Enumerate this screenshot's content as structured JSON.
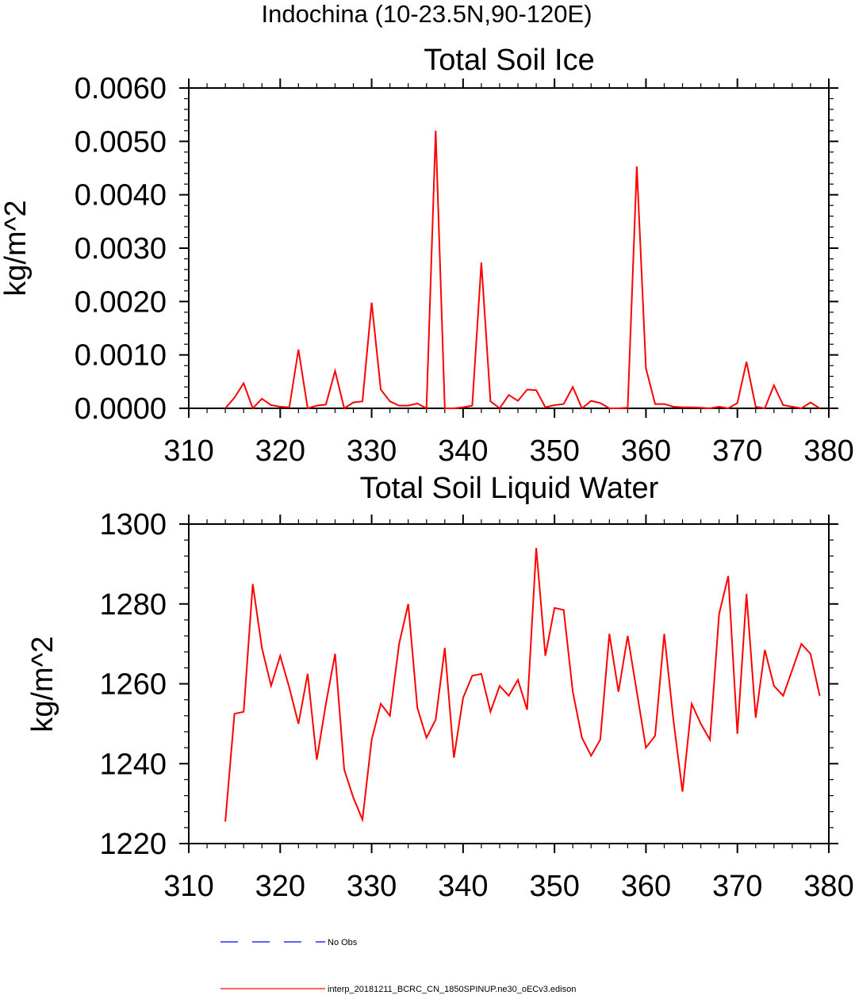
{
  "figure_title": "Indochina (10-23.5N,90-120E)",
  "chart_data": [
    {
      "type": "line",
      "title": "Total Soil Ice",
      "ylabel": "kg/m^2",
      "xlabel": "",
      "xlim": [
        310,
        380
      ],
      "ylim": [
        0,
        0.006
      ],
      "xticks": [
        "310",
        "320",
        "330",
        "340",
        "350",
        "360",
        "370",
        "380"
      ],
      "yticks": [
        "0.0000",
        "0.0010",
        "0.0020",
        "0.0030",
        "0.0040",
        "0.0050",
        "0.0060"
      ],
      "series": [
        {
          "color": "#ff0000",
          "x": [
            314,
            315,
            316,
            317,
            318,
            319,
            320,
            321,
            322,
            323,
            324,
            325,
            326,
            327,
            328,
            329,
            330,
            331,
            332,
            333,
            334,
            335,
            336,
            337,
            338,
            339,
            340,
            341,
            342,
            343,
            344,
            345,
            346,
            347,
            348,
            349,
            350,
            351,
            352,
            353,
            354,
            355,
            356,
            357,
            358,
            359,
            360,
            361,
            362,
            363,
            364,
            365,
            366,
            367,
            368,
            369,
            370,
            371,
            372,
            373,
            374,
            375,
            376,
            377,
            378,
            379
          ],
          "y": [
            0.0,
            0.0002,
            0.00047,
            0.0,
            0.00018,
            6e-05,
            3e-05,
            2e-05,
            0.0011,
            0.0,
            5e-05,
            7e-05,
            0.0007,
            0.0,
            0.00011,
            0.00013,
            0.00198,
            0.00035,
            0.00013,
            5e-05,
            5e-05,
            9e-05,
            0.0,
            0.0052,
            0.0,
            0.0,
            2e-05,
            5e-05,
            0.00273,
            0.00013,
            0.0,
            0.00025,
            0.00014,
            0.00035,
            0.00034,
            2e-05,
            6e-05,
            8e-05,
            0.0004,
            0.0,
            0.00014,
            0.0001,
            0.0,
            0.0,
            1e-05,
            0.00453,
            0.00075,
            8e-05,
            8e-05,
            3e-05,
            2e-05,
            2e-05,
            1e-05,
            0.0,
            3e-05,
            0.0,
            0.0001,
            0.00087,
            3e-05,
            0.0,
            0.00043,
            6e-05,
            3e-05,
            0.0,
            0.00011,
            0.0
          ]
        }
      ]
    },
    {
      "type": "line",
      "title": "Total Soil Liquid Water",
      "ylabel": "kg/m^2",
      "xlabel": "",
      "xlim": [
        310,
        380
      ],
      "ylim": [
        1220,
        1300
      ],
      "xticks": [
        "310",
        "320",
        "330",
        "340",
        "350",
        "360",
        "370",
        "380"
      ],
      "yticks": [
        "1220",
        "1240",
        "1260",
        "1280",
        "1300"
      ],
      "series": [
        {
          "color": "#ff0000",
          "x": [
            314,
            315,
            316,
            317,
            318,
            319,
            320,
            321,
            322,
            323,
            324,
            325,
            326,
            327,
            328,
            329,
            330,
            331,
            332,
            333,
            334,
            335,
            336,
            337,
            338,
            339,
            340,
            341,
            342,
            343,
            344,
            345,
            346,
            347,
            348,
            349,
            350,
            351,
            352,
            353,
            354,
            355,
            356,
            357,
            358,
            359,
            360,
            361,
            362,
            363,
            364,
            365,
            366,
            367,
            368,
            369,
            370,
            371,
            372,
            373,
            374,
            375,
            376,
            377,
            378,
            379
          ],
          "y": [
            1225.5,
            1252.5,
            1253,
            1285,
            1269,
            1259.5,
            1267,
            1259,
            1250,
            1262.5,
            1241,
            1255,
            1267.5,
            1238.5,
            1231.5,
            1226,
            1246,
            1255,
            1252,
            1270,
            1280,
            1254,
            1246.5,
            1251,
            1269,
            1241.5,
            1256.5,
            1262,
            1262.5,
            1253,
            1259.5,
            1257,
            1261,
            1253.5,
            1294,
            1267,
            1279,
            1278.5,
            1258,
            1246.5,
            1242,
            1246,
            1272.5,
            1258,
            1272,
            1258,
            1244,
            1247,
            1272.5,
            1251,
            1233,
            1255,
            1250,
            1246,
            1277.5,
            1287,
            1247.5,
            1282.5,
            1251.5,
            1268.5,
            1259.5,
            1257,
            1263.5,
            1270,
            1267.5,
            1257
          ]
        }
      ]
    }
  ],
  "legend": [
    {
      "label": "No Obs",
      "color": "#0000ff",
      "style": "dashed"
    },
    {
      "label": "interp_20181211_BCRC_CN_1850SPINUP.ne30_oECv3.edison",
      "color": "#ff0000",
      "style": "solid"
    }
  ]
}
